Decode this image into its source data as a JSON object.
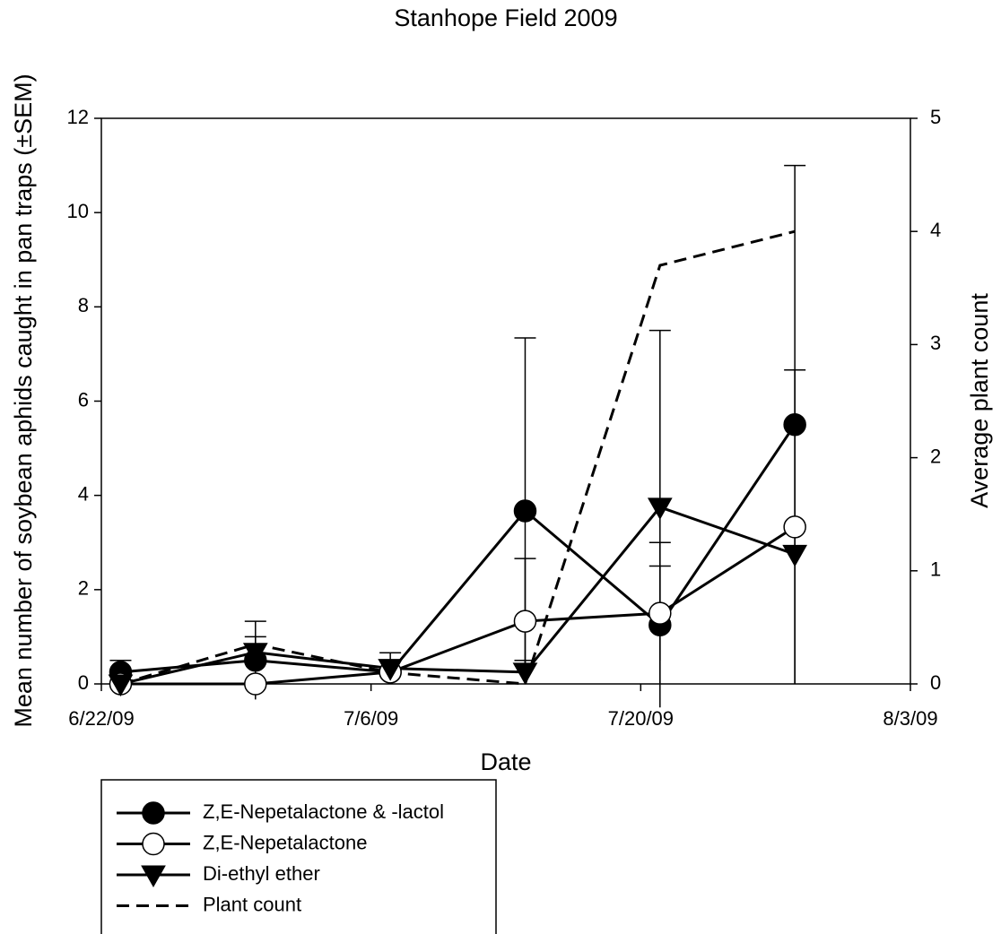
{
  "chart_data": {
    "type": "line",
    "title": "Stanhope Field 2009",
    "x_label": "Date",
    "y_label": "Mean number of soybean aphids caught in pan traps (±SEM)",
    "y2_label": "Average plant count",
    "x": [
      "6/23/09",
      "6/30/09",
      "7/7/09",
      "7/14/09",
      "7/21/09",
      "7/28/09"
    ],
    "xlim": [
      "6/22/09",
      "8/3/09"
    ],
    "xticks": [
      "6/22/09",
      "7/6/09",
      "7/20/09",
      "8/3/09"
    ],
    "ylim": [
      0,
      12
    ],
    "yticks": [
      0,
      2,
      4,
      6,
      8,
      10,
      12
    ],
    "y2lim": [
      0,
      5
    ],
    "y2ticks": [
      0,
      1,
      2,
      3,
      4,
      5
    ],
    "series": [
      {
        "name": "Z,E-Nepetalactone & -lactol",
        "color": "#000000",
        "marker": "circle-filled",
        "linestyle": "solid",
        "values": [
          0.25,
          0.5,
          0.25,
          3.67,
          1.25,
          5.5
        ],
        "errors": [
          0.25,
          0.83,
          null,
          3.67,
          1.75,
          5.5
        ]
      },
      {
        "name": "Z,E-Nepetalactone",
        "color": "#000000",
        "marker": "circle-open",
        "linestyle": "solid",
        "values": [
          0,
          0,
          0.25,
          1.33,
          1.5,
          3.33
        ],
        "errors": [
          null,
          null,
          null,
          1.33,
          1.0,
          3.33
        ]
      },
      {
        "name": "Di-ethyl ether",
        "color": "#000000",
        "marker": "triangle-down",
        "linestyle": "solid",
        "values": [
          0,
          0.67,
          0.33,
          0.25,
          3.75,
          2.75
        ],
        "errors": [
          null,
          0.33,
          0.33,
          0.25,
          3.75,
          null
        ]
      },
      {
        "name": "Plant count",
        "color": "#000000",
        "marker": "none",
        "linestyle": "dashed",
        "axis": "y2",
        "values": [
          0,
          0.35,
          0.1,
          0,
          3.7,
          4.0
        ]
      }
    ]
  }
}
